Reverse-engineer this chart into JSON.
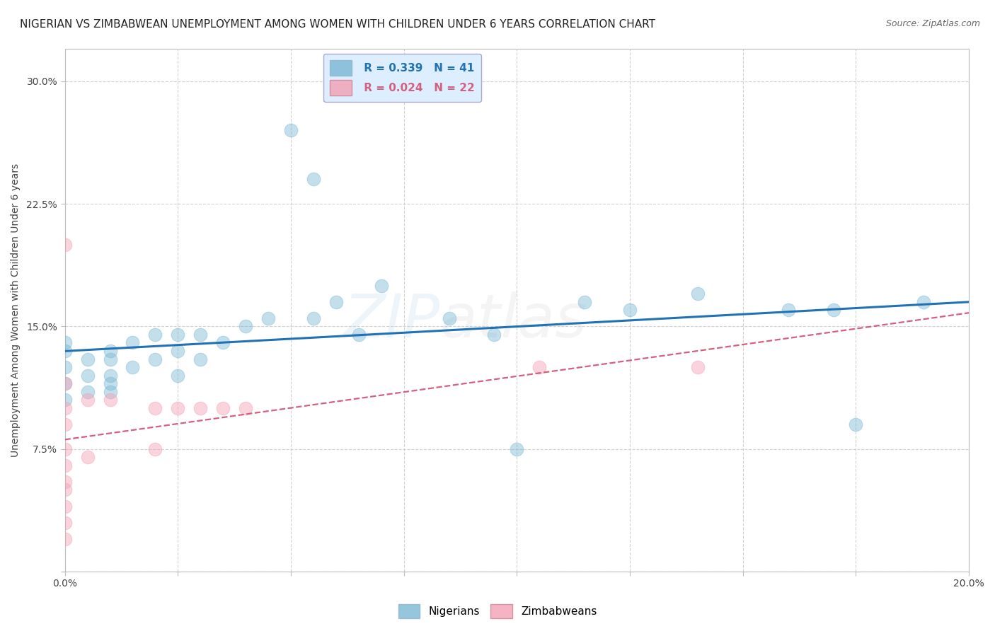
{
  "title": "NIGERIAN VS ZIMBABWEAN UNEMPLOYMENT AMONG WOMEN WITH CHILDREN UNDER 6 YEARS CORRELATION CHART",
  "source": "Source: ZipAtlas.com",
  "ylabel": "Unemployment Among Women with Children Under 6 years",
  "xlabel": "",
  "watermark_part1": "ZIP",
  "watermark_part2": "atlas",
  "xlim": [
    0.0,
    0.2
  ],
  "ylim": [
    0.0,
    0.32
  ],
  "xticks": [
    0.0,
    0.025,
    0.05,
    0.075,
    0.1,
    0.125,
    0.15,
    0.175,
    0.2
  ],
  "xtick_labels": [
    "0.0%",
    "",
    "",
    "",
    "",
    "",
    "",
    "",
    "20.0%"
  ],
  "yticks": [
    0.0,
    0.075,
    0.15,
    0.225,
    0.3
  ],
  "ytick_labels": [
    "",
    "7.5%",
    "15.0%",
    "22.5%",
    "30.0%"
  ],
  "nigerian_R": 0.339,
  "nigerian_N": 41,
  "zimbabwean_R": 0.024,
  "zimbabwean_N": 22,
  "nigerian_color": "#7bb8d4",
  "nigerian_edge_color": "#7bb8d4",
  "zimbabwean_color": "#f4a0b5",
  "zimbabwean_edge_color": "#f4a0b5",
  "nigerian_line_color": "#2171b5",
  "zimbabwean_line_color": "#d46080",
  "legend_box_color": "#ddeeff",
  "nigerian_x": [
    0.0,
    0.0,
    0.0,
    0.0,
    0.0,
    0.005,
    0.005,
    0.005,
    0.01,
    0.01,
    0.01,
    0.01,
    0.01,
    0.015,
    0.015,
    0.02,
    0.02,
    0.025,
    0.025,
    0.025,
    0.03,
    0.03,
    0.035,
    0.04,
    0.045,
    0.05,
    0.055,
    0.055,
    0.06,
    0.065,
    0.07,
    0.085,
    0.095,
    0.1,
    0.115,
    0.125,
    0.14,
    0.16,
    0.17,
    0.175,
    0.19
  ],
  "nigerian_y": [
    0.105,
    0.115,
    0.125,
    0.135,
    0.14,
    0.11,
    0.12,
    0.13,
    0.11,
    0.115,
    0.12,
    0.13,
    0.135,
    0.125,
    0.14,
    0.13,
    0.145,
    0.12,
    0.135,
    0.145,
    0.13,
    0.145,
    0.14,
    0.15,
    0.155,
    0.27,
    0.155,
    0.24,
    0.165,
    0.145,
    0.175,
    0.155,
    0.145,
    0.075,
    0.165,
    0.16,
    0.17,
    0.16,
    0.16,
    0.09,
    0.165
  ],
  "zimbabwean_x": [
    0.0,
    0.0,
    0.0,
    0.0,
    0.0,
    0.0,
    0.0,
    0.0,
    0.0,
    0.005,
    0.005,
    0.01,
    0.02,
    0.02,
    0.025,
    0.03,
    0.035,
    0.04,
    0.105,
    0.14,
    0.0,
    0.0
  ],
  "zimbabwean_y": [
    0.02,
    0.03,
    0.04,
    0.05,
    0.055,
    0.065,
    0.075,
    0.09,
    0.1,
    0.07,
    0.105,
    0.105,
    0.075,
    0.1,
    0.1,
    0.1,
    0.1,
    0.1,
    0.125,
    0.125,
    0.115,
    0.2
  ],
  "background_color": "#ffffff",
  "grid_color": "#cccccc",
  "title_fontsize": 11,
  "source_fontsize": 9,
  "ylabel_fontsize": 10,
  "legend_fontsize": 11,
  "watermark_alpha": 0.13,
  "marker_size": 180,
  "marker_alpha": 0.45
}
